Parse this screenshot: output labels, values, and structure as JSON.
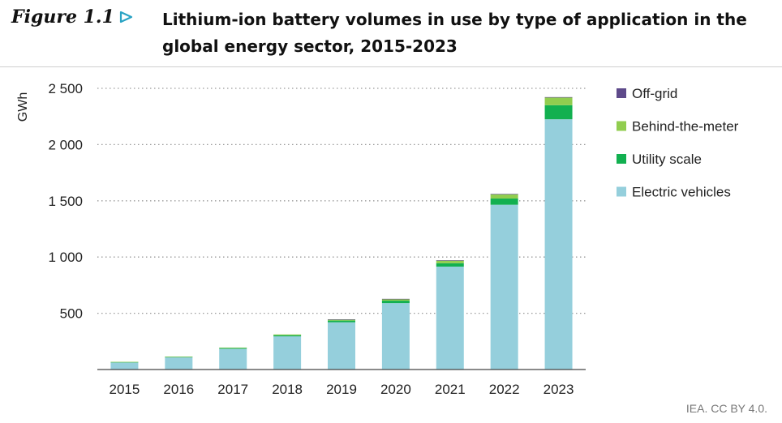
{
  "figure": {
    "label": "Figure 1.1",
    "title": "Lithium-ion battery volumes in use by type of application in the global energy sector, 2015-2023",
    "source": "IEA. CC BY 4.0."
  },
  "chart_data": {
    "type": "bar",
    "stacked": true,
    "categories": [
      "2015",
      "2016",
      "2017",
      "2018",
      "2019",
      "2020",
      "2021",
      "2022",
      "2023"
    ],
    "ylabel": "GWh",
    "ylim": [
      0,
      2500
    ],
    "yticks": [
      500,
      1000,
      1500,
      2000,
      2500
    ],
    "ytick_labels": [
      "500",
      "1 000",
      "1 500",
      "2 000",
      "2 500"
    ],
    "grid": "horizontal dotted",
    "legend_position": "right",
    "series": [
      {
        "name": "Electric vehicles",
        "color": "#95cfdc",
        "values": [
          65,
          110,
          185,
          295,
          420,
          590,
          915,
          1465,
          2225
        ]
      },
      {
        "name": "Utility scale",
        "color": "#12b050",
        "values": [
          2,
          3,
          6,
          10,
          15,
          22,
          30,
          55,
          125
        ]
      },
      {
        "name": "Behind-the-meter",
        "color": "#91cd4f",
        "values": [
          1,
          2,
          4,
          7,
          10,
          15,
          25,
          40,
          70
        ]
      },
      {
        "name": "Off-grid",
        "color": "#5e4a8a",
        "values": [
          0,
          0,
          0,
          0,
          1,
          1,
          1,
          1,
          2
        ]
      }
    ]
  }
}
